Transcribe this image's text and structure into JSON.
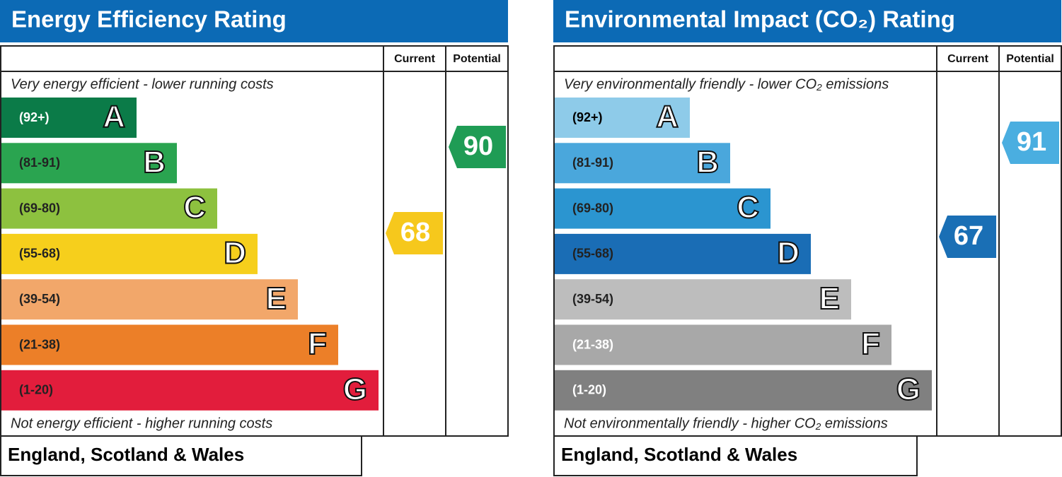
{
  "panels": [
    {
      "title": "Energy Efficiency Rating",
      "columns": [
        "Current",
        "Potential"
      ],
      "top_note": "Very energy efficient - lower running costs",
      "bands": [
        {
          "range": "(92+)",
          "letter": "A"
        },
        {
          "range": "(81-91)",
          "letter": "B"
        },
        {
          "range": "(69-80)",
          "letter": "C"
        },
        {
          "range": "(55-68)",
          "letter": "D"
        },
        {
          "range": "(39-54)",
          "letter": "E"
        },
        {
          "range": "(21-38)",
          "letter": "F"
        },
        {
          "range": "(1-20)",
          "letter": "G"
        }
      ],
      "bottom_note": "Not energy efficient - higher running costs",
      "current": 68,
      "potential": 90,
      "footer": "England, Scotland & Wales"
    },
    {
      "title": "Environmental Impact (CO₂) Rating",
      "columns": [
        "Current",
        "Potential"
      ],
      "top_note": "Very environmentally friendly - lower CO₂ emissions",
      "bands": [
        {
          "range": "(92+)",
          "letter": "A"
        },
        {
          "range": "(81-91)",
          "letter": "B"
        },
        {
          "range": "(69-80)",
          "letter": "C"
        },
        {
          "range": "(55-68)",
          "letter": "D"
        },
        {
          "range": "(39-54)",
          "letter": "E"
        },
        {
          "range": "(21-38)",
          "letter": "F"
        },
        {
          "range": "(1-20)",
          "letter": "G"
        }
      ],
      "bottom_note": "Not environmentally friendly - higher CO₂ emissions",
      "current": 67,
      "potential": 91,
      "footer": "England, Scotland & Wales"
    }
  ]
}
